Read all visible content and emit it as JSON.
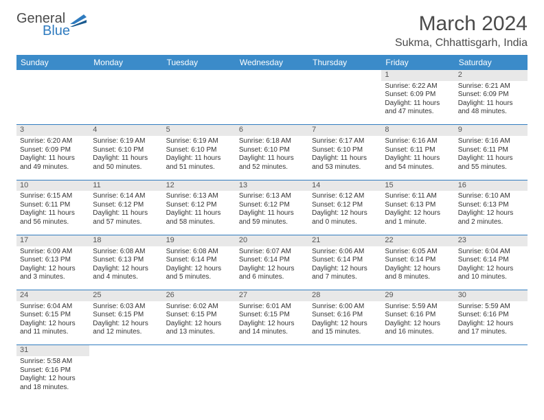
{
  "brand": {
    "line1": "General",
    "line2": "Blue"
  },
  "title": "March 2024",
  "location": "Sukma, Chhattisgarh, India",
  "colors": {
    "header_bg": "#3b8bc9",
    "header_text": "#ffffff",
    "row_divider": "#2f7bbf",
    "daynum_bg": "#e8e8e8",
    "logo_gray": "#4a4a4a",
    "logo_blue": "#2f7bbf"
  },
  "day_headers": [
    "Sunday",
    "Monday",
    "Tuesday",
    "Wednesday",
    "Thursday",
    "Friday",
    "Saturday"
  ],
  "weeks": [
    [
      null,
      null,
      null,
      null,
      null,
      {
        "n": "1",
        "sunrise": "6:22 AM",
        "sunset": "6:09 PM",
        "daylight": "11 hours and 47 minutes."
      },
      {
        "n": "2",
        "sunrise": "6:21 AM",
        "sunset": "6:09 PM",
        "daylight": "11 hours and 48 minutes."
      }
    ],
    [
      {
        "n": "3",
        "sunrise": "6:20 AM",
        "sunset": "6:09 PM",
        "daylight": "11 hours and 49 minutes."
      },
      {
        "n": "4",
        "sunrise": "6:19 AM",
        "sunset": "6:10 PM",
        "daylight": "11 hours and 50 minutes."
      },
      {
        "n": "5",
        "sunrise": "6:19 AM",
        "sunset": "6:10 PM",
        "daylight": "11 hours and 51 minutes."
      },
      {
        "n": "6",
        "sunrise": "6:18 AM",
        "sunset": "6:10 PM",
        "daylight": "11 hours and 52 minutes."
      },
      {
        "n": "7",
        "sunrise": "6:17 AM",
        "sunset": "6:10 PM",
        "daylight": "11 hours and 53 minutes."
      },
      {
        "n": "8",
        "sunrise": "6:16 AM",
        "sunset": "6:11 PM",
        "daylight": "11 hours and 54 minutes."
      },
      {
        "n": "9",
        "sunrise": "6:16 AM",
        "sunset": "6:11 PM",
        "daylight": "11 hours and 55 minutes."
      }
    ],
    [
      {
        "n": "10",
        "sunrise": "6:15 AM",
        "sunset": "6:11 PM",
        "daylight": "11 hours and 56 minutes."
      },
      {
        "n": "11",
        "sunrise": "6:14 AM",
        "sunset": "6:12 PM",
        "daylight": "11 hours and 57 minutes."
      },
      {
        "n": "12",
        "sunrise": "6:13 AM",
        "sunset": "6:12 PM",
        "daylight": "11 hours and 58 minutes."
      },
      {
        "n": "13",
        "sunrise": "6:13 AM",
        "sunset": "6:12 PM",
        "daylight": "11 hours and 59 minutes."
      },
      {
        "n": "14",
        "sunrise": "6:12 AM",
        "sunset": "6:12 PM",
        "daylight": "12 hours and 0 minutes."
      },
      {
        "n": "15",
        "sunrise": "6:11 AM",
        "sunset": "6:13 PM",
        "daylight": "12 hours and 1 minute."
      },
      {
        "n": "16",
        "sunrise": "6:10 AM",
        "sunset": "6:13 PM",
        "daylight": "12 hours and 2 minutes."
      }
    ],
    [
      {
        "n": "17",
        "sunrise": "6:09 AM",
        "sunset": "6:13 PM",
        "daylight": "12 hours and 3 minutes."
      },
      {
        "n": "18",
        "sunrise": "6:08 AM",
        "sunset": "6:13 PM",
        "daylight": "12 hours and 4 minutes."
      },
      {
        "n": "19",
        "sunrise": "6:08 AM",
        "sunset": "6:14 PM",
        "daylight": "12 hours and 5 minutes."
      },
      {
        "n": "20",
        "sunrise": "6:07 AM",
        "sunset": "6:14 PM",
        "daylight": "12 hours and 6 minutes."
      },
      {
        "n": "21",
        "sunrise": "6:06 AM",
        "sunset": "6:14 PM",
        "daylight": "12 hours and 7 minutes."
      },
      {
        "n": "22",
        "sunrise": "6:05 AM",
        "sunset": "6:14 PM",
        "daylight": "12 hours and 8 minutes."
      },
      {
        "n": "23",
        "sunrise": "6:04 AM",
        "sunset": "6:14 PM",
        "daylight": "12 hours and 10 minutes."
      }
    ],
    [
      {
        "n": "24",
        "sunrise": "6:04 AM",
        "sunset": "6:15 PM",
        "daylight": "12 hours and 11 minutes."
      },
      {
        "n": "25",
        "sunrise": "6:03 AM",
        "sunset": "6:15 PM",
        "daylight": "12 hours and 12 minutes."
      },
      {
        "n": "26",
        "sunrise": "6:02 AM",
        "sunset": "6:15 PM",
        "daylight": "12 hours and 13 minutes."
      },
      {
        "n": "27",
        "sunrise": "6:01 AM",
        "sunset": "6:15 PM",
        "daylight": "12 hours and 14 minutes."
      },
      {
        "n": "28",
        "sunrise": "6:00 AM",
        "sunset": "6:16 PM",
        "daylight": "12 hours and 15 minutes."
      },
      {
        "n": "29",
        "sunrise": "5:59 AM",
        "sunset": "6:16 PM",
        "daylight": "12 hours and 16 minutes."
      },
      {
        "n": "30",
        "sunrise": "5:59 AM",
        "sunset": "6:16 PM",
        "daylight": "12 hours and 17 minutes."
      }
    ],
    [
      {
        "n": "31",
        "sunrise": "5:58 AM",
        "sunset": "6:16 PM",
        "daylight": "12 hours and 18 minutes."
      },
      null,
      null,
      null,
      null,
      null,
      null
    ]
  ],
  "labels": {
    "sunrise": "Sunrise:",
    "sunset": "Sunset:",
    "daylight": "Daylight:"
  }
}
